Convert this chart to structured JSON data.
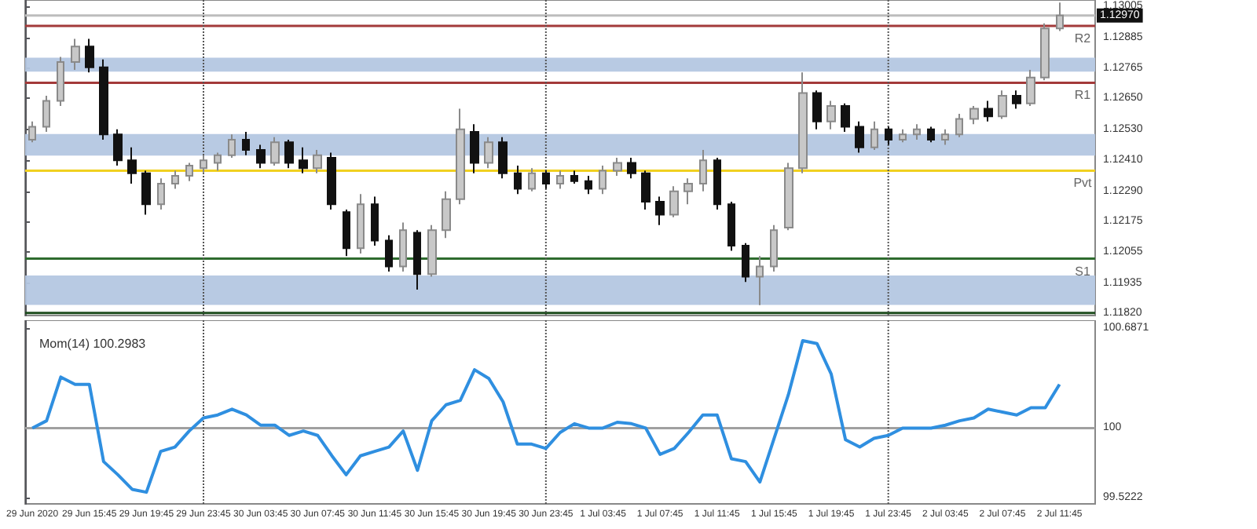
{
  "chart_data": [
    {
      "type": "candlestick",
      "tick_labels": "y",
      "categories": [
        "29 Jun 2020",
        null,
        null,
        null,
        "29 Jun 15:45",
        null,
        null,
        null,
        "29 Jun 19:45",
        null,
        null,
        null,
        "29 Jun 23:45",
        null,
        null,
        null,
        "30 Jun 03:45",
        null,
        null,
        null,
        "30 Jun 07:45",
        null,
        null,
        null,
        "30 Jun 11:45",
        null,
        null,
        null,
        "30 Jun 15:45",
        null,
        null,
        null,
        "30 Jun 19:45",
        null,
        null,
        null,
        "30 Jun 23:45",
        null,
        null,
        null,
        "1 Jul 03:45",
        null,
        null,
        null,
        "1 Jul 07:45",
        null,
        null,
        null,
        "1 Jul 11:45",
        null,
        null,
        null,
        "1 Jul 15:45",
        null,
        null,
        null,
        "1 Jul 19:45",
        null,
        null,
        null,
        "1 Jul 23:45",
        null,
        null,
        null,
        "2 Jul 03:45",
        null,
        null,
        null,
        "2 Jul 07:45",
        null,
        null,
        null,
        "2 Jul 11:45",
        null,
        null
      ],
      "ohlc": [
        [
          1.1249,
          1.1256,
          1.1248,
          1.1254
        ],
        [
          1.1254,
          1.1266,
          1.1252,
          1.1264
        ],
        [
          1.1264,
          1.1281,
          1.1262,
          1.1279
        ],
        [
          1.1279,
          1.1288,
          1.1276,
          1.1285
        ],
        [
          1.1285,
          1.1288,
          1.1275,
          1.1277
        ],
        [
          1.1277,
          1.128,
          1.1249,
          1.1251
        ],
        [
          1.1251,
          1.1253,
          1.1239,
          1.1241
        ],
        [
          1.1241,
          1.1246,
          1.1232,
          1.1236
        ],
        [
          1.1236,
          1.1237,
          1.122,
          1.1224
        ],
        [
          1.1224,
          1.1234,
          1.1222,
          1.1232
        ],
        [
          1.1232,
          1.1237,
          1.123,
          1.1235
        ],
        [
          1.1235,
          1.124,
          1.1233,
          1.1239
        ],
        [
          1.1238,
          1.1243,
          1.1236,
          1.1241
        ],
        [
          1.124,
          1.1244,
          1.1237,
          1.1243
        ],
        [
          1.1243,
          1.1251,
          1.1242,
          1.1249
        ],
        [
          1.1249,
          1.1252,
          1.1243,
          1.1245
        ],
        [
          1.1245,
          1.1247,
          1.1238,
          1.124
        ],
        [
          1.124,
          1.125,
          1.1239,
          1.1248
        ],
        [
          1.1248,
          1.1249,
          1.1238,
          1.124
        ],
        [
          1.1241,
          1.1246,
          1.1236,
          1.1238
        ],
        [
          1.1238,
          1.1245,
          1.1236,
          1.1243
        ],
        [
          1.1242,
          1.1244,
          1.1222,
          1.1224
        ],
        [
          1.1221,
          1.1222,
          1.1204,
          1.1207
        ],
        [
          1.1207,
          1.1228,
          1.1205,
          1.1224
        ],
        [
          1.1224,
          1.1227,
          1.1208,
          1.121
        ],
        [
          1.121,
          1.1212,
          1.1198,
          1.12
        ],
        [
          1.12,
          1.1217,
          1.1198,
          1.1214
        ],
        [
          1.1213,
          1.1214,
          1.1191,
          1.1197
        ],
        [
          1.1197,
          1.1216,
          1.1196,
          1.1214
        ],
        [
          1.1214,
          1.1229,
          1.1211,
          1.1226
        ],
        [
          1.1226,
          1.1261,
          1.1224,
          1.1253
        ],
        [
          1.1252,
          1.1255,
          1.1236,
          1.124
        ],
        [
          1.124,
          1.125,
          1.1238,
          1.1248
        ],
        [
          1.1248,
          1.125,
          1.1234,
          1.1236
        ],
        [
          1.1236,
          1.1239,
          1.1228,
          1.123
        ],
        [
          1.123,
          1.1238,
          1.1229,
          1.1236
        ],
        [
          1.1236,
          1.1237,
          1.123,
          1.1232
        ],
        [
          1.1232,
          1.1237,
          1.123,
          1.1235
        ],
        [
          1.1235,
          1.1237,
          1.1232,
          1.1233
        ],
        [
          1.1233,
          1.1235,
          1.1228,
          1.123
        ],
        [
          1.123,
          1.1239,
          1.1228,
          1.1237
        ],
        [
          1.1237,
          1.1242,
          1.1235,
          1.124
        ],
        [
          1.124,
          1.1242,
          1.1234,
          1.1236
        ],
        [
          1.1236,
          1.1237,
          1.1222,
          1.1225
        ],
        [
          1.1225,
          1.1227,
          1.1216,
          1.122
        ],
        [
          1.122,
          1.1231,
          1.1219,
          1.1229
        ],
        [
          1.1229,
          1.1234,
          1.1224,
          1.1232
        ],
        [
          1.1232,
          1.1245,
          1.1229,
          1.1241
        ],
        [
          1.1241,
          1.1242,
          1.1222,
          1.1224
        ],
        [
          1.1224,
          1.1225,
          1.1206,
          1.1208
        ],
        [
          1.1208,
          1.1209,
          1.1194,
          1.1196
        ],
        [
          1.1196,
          1.1204,
          1.1185,
          1.12
        ],
        [
          1.12,
          1.1216,
          1.1198,
          1.1214
        ],
        [
          1.1215,
          1.124,
          1.1214,
          1.1238
        ],
        [
          1.1238,
          1.1275,
          1.1236,
          1.1267
        ],
        [
          1.1267,
          1.1268,
          1.1253,
          1.1256
        ],
        [
          1.1256,
          1.1264,
          1.1253,
          1.1262
        ],
        [
          1.1262,
          1.1263,
          1.1252,
          1.1254
        ],
        [
          1.1254,
          1.1256,
          1.1244,
          1.1246
        ],
        [
          1.1246,
          1.1256,
          1.1245,
          1.1253
        ],
        [
          1.1253,
          1.1254,
          1.1247,
          1.1249
        ],
        [
          1.1249,
          1.1253,
          1.1248,
          1.1251
        ],
        [
          1.1251,
          1.1255,
          1.1249,
          1.1253
        ],
        [
          1.1253,
          1.1254,
          1.1248,
          1.1249
        ],
        [
          1.1249,
          1.1253,
          1.1247,
          1.1251
        ],
        [
          1.1251,
          1.1259,
          1.125,
          1.1257
        ],
        [
          1.1257,
          1.1262,
          1.1255,
          1.1261
        ],
        [
          1.1261,
          1.1264,
          1.1256,
          1.1258
        ],
        [
          1.1258,
          1.1268,
          1.1257,
          1.1266
        ],
        [
          1.1266,
          1.1268,
          1.1261,
          1.1263
        ],
        [
          1.1263,
          1.1276,
          1.1262,
          1.1273
        ],
        [
          1.1273,
          1.1294,
          1.1272,
          1.1292
        ],
        [
          1.1292,
          1.1302,
          1.1291,
          1.1297
        ],
        null,
        null
      ],
      "ylim": [
        1.1181,
        1.1303
      ],
      "yticks": [
        {
          "value": 1.1182,
          "label": "1.11820"
        },
        {
          "value": 1.11935,
          "label": "1.11935"
        },
        {
          "value": 1.12055,
          "label": "1.12055"
        },
        {
          "value": 1.12175,
          "label": "1.12175"
        },
        {
          "value": 1.1229,
          "label": "1.12290"
        },
        {
          "value": 1.1241,
          "label": "1.12410"
        },
        {
          "value": 1.1253,
          "label": "1.12530"
        },
        {
          "value": 1.1265,
          "label": "1.12650"
        },
        {
          "value": 1.12765,
          "label": "1.12765"
        },
        {
          "value": 1.12885,
          "label": "1.12885"
        },
        {
          "value": 1.13005,
          "label": "1.13005"
        }
      ],
      "ref_lines": [
        {
          "axis": "y",
          "value": 1.1293,
          "label": "R2",
          "color": "#a33a3a"
        },
        {
          "axis": "y",
          "value": 1.1271,
          "label": "R1",
          "color": "#a33a3a"
        },
        {
          "axis": "y",
          "value": 1.1237,
          "label": "Pvt",
          "color": "#f0d020"
        },
        {
          "axis": "y",
          "value": 1.1203,
          "label": "S1",
          "color": "#2e6b2e"
        },
        {
          "axis": "y",
          "value": 1.1182,
          "color": "#1e4d1e"
        },
        {
          "axis": "y",
          "value": 1.1297,
          "color": "#bdbdbd"
        },
        {
          "axis": "x",
          "value": "29 Jun 23:45",
          "color": "#555555",
          "line_style": "dotted"
        },
        {
          "axis": "x",
          "value": "30 Jun 23:45",
          "color": "#555555",
          "line_style": "dotted"
        },
        {
          "axis": "x",
          "value": "1 Jul 23:45",
          "color": "#555555",
          "line_style": "dotted"
        }
      ],
      "bands": [
        {
          "axis": "y",
          "from": 1.12753,
          "to": 1.12807,
          "color": "#b4c7e2"
        },
        {
          "axis": "y",
          "from": 1.12428,
          "to": 1.12512,
          "color": "#b4c7e2"
        },
        {
          "axis": "y",
          "from": 1.11851,
          "to": 1.11965,
          "color": "#b4c7e2"
        }
      ],
      "annotations": [
        {
          "text": "1.12970",
          "y": 1.1297
        }
      ]
    },
    {
      "type": "line",
      "title": "Mom(14) 100.2983",
      "marker": "none",
      "categories": [
        "29 Jun 2020",
        null,
        null,
        null,
        "29 Jun 15:45",
        null,
        null,
        null,
        "29 Jun 19:45",
        null,
        null,
        null,
        "29 Jun 23:45",
        null,
        null,
        null,
        "30 Jun 03:45",
        null,
        null,
        null,
        "30 Jun 07:45",
        null,
        null,
        null,
        "30 Jun 11:45",
        null,
        null,
        null,
        "30 Jun 15:45",
        null,
        null,
        null,
        "30 Jun 19:45",
        null,
        null,
        null,
        "30 Jun 23:45",
        null,
        null,
        null,
        "1 Jul 03:45",
        null,
        null,
        null,
        "1 Jul 07:45",
        null,
        null,
        null,
        "1 Jul 11:45",
        null,
        null,
        null,
        "1 Jul 15:45",
        null,
        null,
        null,
        "1 Jul 19:45",
        null,
        null,
        null,
        "1 Jul 23:45",
        null,
        null,
        null,
        "2 Jul 03:45",
        null,
        null,
        null,
        "2 Jul 07:45",
        null,
        null,
        null,
        "2 Jul 11:45",
        null,
        null
      ],
      "series": [
        {
          "color": "#2f8fe0",
          "values": [
            100.0,
            100.05,
            100.35,
            100.3,
            100.3,
            99.77,
            99.68,
            99.58,
            99.56,
            99.84,
            99.87,
            99.98,
            100.07,
            100.09,
            100.13,
            100.09,
            100.02,
            100.02,
            99.95,
            99.98,
            99.95,
            99.81,
            99.68,
            99.81,
            99.84,
            99.87,
            99.98,
            99.71,
            100.05,
            100.16,
            100.19,
            100.4,
            100.34,
            100.18,
            99.89,
            99.89,
            99.86,
            99.97,
            100.03,
            100.0,
            100.0,
            100.04,
            100.03,
            100.0,
            99.82,
            99.86,
            99.97,
            100.09,
            100.09,
            99.79,
            99.77,
            99.63,
            99.93,
            100.23,
            100.6,
            100.58,
            100.37,
            99.92,
            99.87,
            99.93,
            99.95,
            100.0,
            100.0,
            100.0,
            100.02,
            100.05,
            100.07,
            100.13,
            100.11,
            100.09,
            100.14,
            100.14,
            100.3,
            null,
            null
          ]
        }
      ],
      "ylim": [
        99.48,
        100.74
      ],
      "yticks": [
        99.5222,
        100,
        100.6871
      ],
      "ref_lines": [
        {
          "axis": "y",
          "value": 100,
          "color": "#a0a0a0"
        },
        {
          "axis": "x",
          "value": "29 Jun 23:45",
          "color": "#555555",
          "line_style": "dotted"
        },
        {
          "axis": "x",
          "value": "30 Jun 23:45",
          "color": "#555555",
          "line_style": "dotted"
        },
        {
          "axis": "x",
          "value": "1 Jul 23:45",
          "color": "#555555",
          "line_style": "dotted"
        }
      ]
    }
  ]
}
